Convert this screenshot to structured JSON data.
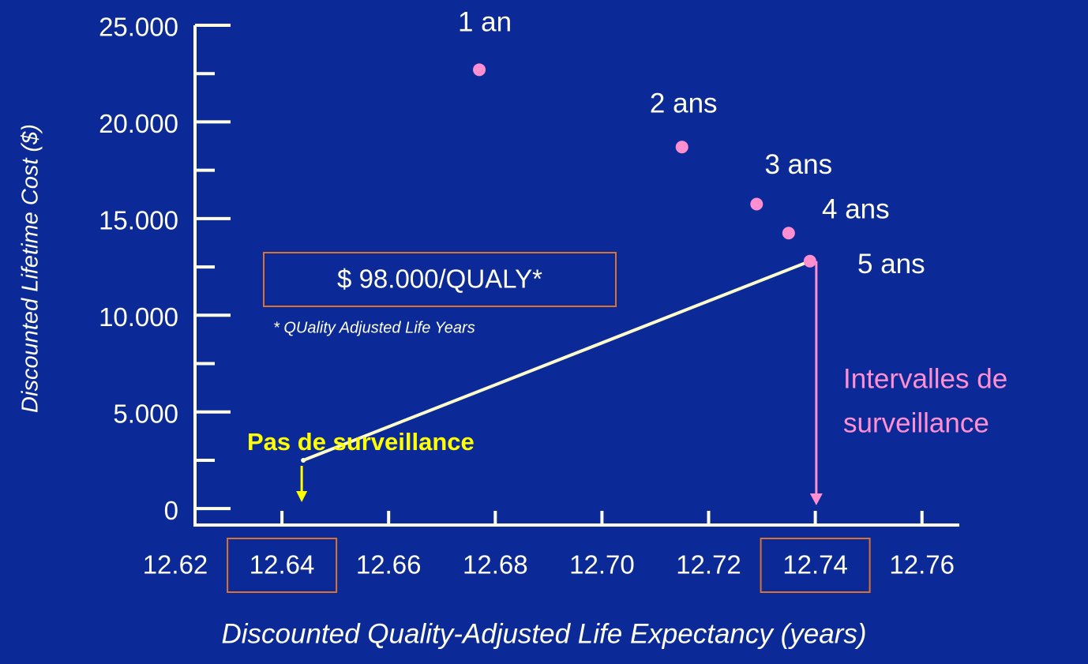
{
  "chart_data": {
    "type": "scatter",
    "x_label": "Discounted Quality-Adjusted Life Expectancy (years)",
    "y_label": "Discounted Lifetime Cost ($)",
    "x": [
      12.677,
      12.715,
      12.729,
      12.735,
      12.739
    ],
    "values": [
      22700,
      18700,
      15750,
      14250,
      12800
    ],
    "point_labels": [
      "1 an",
      "2 ans",
      "3 ans",
      "4 ans",
      "5 ans"
    ],
    "color": "#ff8fd0",
    "baseline": {
      "x": 12.644,
      "y": 2500,
      "label": "Pas de surveillance",
      "color": "#ffff00"
    },
    "connector_color": "#ffffcc",
    "ratio_label": "$ 98.000/QUALY*",
    "ratio_note": "* QUality Adjusted Life Years",
    "interval_label": [
      "Intervalles de",
      "surveillance"
    ],
    "xlim": [
      12.62,
      12.767
    ],
    "ylim": [
      -850,
      25000
    ],
    "xticks": [
      12.62,
      12.64,
      12.66,
      12.68,
      {
        "value": 12.7,
        "label": "12.70"
      },
      12.72,
      12.74,
      12.76
    ],
    "highlighted_xticks": [
      12.64,
      12.74
    ],
    "yticks": [
      {
        "value": 0,
        "label": "0"
      },
      {
        "value": 5000,
        "label": "5.000"
      },
      {
        "value": 10000,
        "label": "10.000"
      },
      {
        "value": 15000,
        "label": "15.000"
      },
      {
        "value": 20000,
        "label": "20.000"
      },
      {
        "value": 25000,
        "label": "25.000"
      }
    ],
    "yminor_ticks": [
      2500,
      7500,
      12500,
      17500,
      22500
    ]
  }
}
